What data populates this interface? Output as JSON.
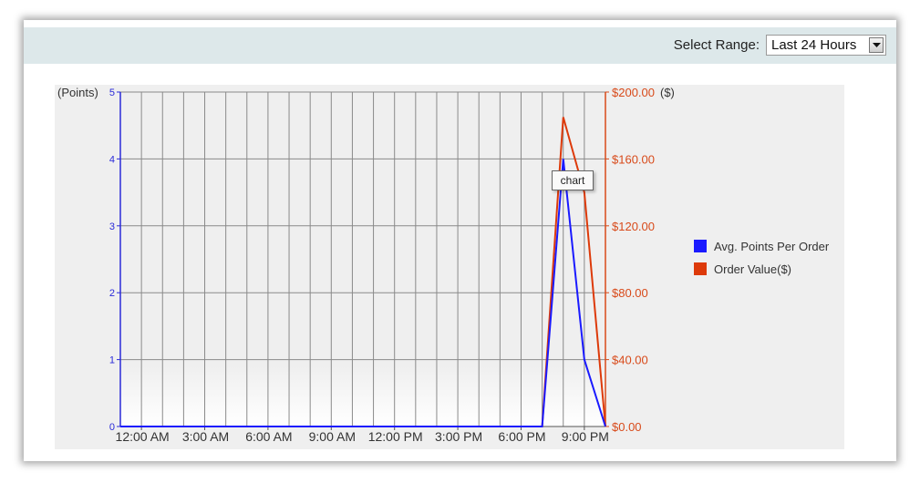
{
  "range": {
    "label": "Select Range:",
    "selected": "Last 24 Hours"
  },
  "tooltip": "chart",
  "colors": {
    "points_series": "#1a1aff",
    "value_series": "#dd3a0a",
    "left_axis": "#2a2ad8",
    "right_axis": "#d84a1a",
    "plot_bg": "#f0f0f0"
  },
  "icons": [
    "chevron-down-icon"
  ],
  "chart_data": {
    "type": "line",
    "x_tick_labels": [
      "12:00 AM",
      "3:00 AM",
      "6:00 AM",
      "9:00 AM",
      "12:00 PM",
      "3:00 PM",
      "6:00 PM",
      "9:00 PM"
    ],
    "x_hour_range": [
      -1,
      22
    ],
    "left_axis": {
      "title": "(Points)",
      "ylim": [
        0,
        5
      ],
      "ticks": [
        "0",
        "1",
        "2",
        "3",
        "4",
        "5"
      ]
    },
    "right_axis": {
      "title": "($)",
      "ylim": [
        0,
        200
      ],
      "ticks": [
        "$0.00",
        "$40.00",
        "$80.00",
        "$120.00",
        "$160.00",
        "$200.00"
      ]
    },
    "legend_position": "right",
    "grid": true,
    "series": [
      {
        "name": "Avg. Points Per Order",
        "axis": "left",
        "x": [
          -1,
          19,
          20,
          21,
          22
        ],
        "values": [
          0,
          0,
          4,
          1,
          0
        ]
      },
      {
        "name": "Order Value($)",
        "axis": "right",
        "x": [
          -1,
          19,
          20,
          21,
          22
        ],
        "values": [
          0,
          0,
          185,
          140,
          0
        ]
      }
    ]
  }
}
